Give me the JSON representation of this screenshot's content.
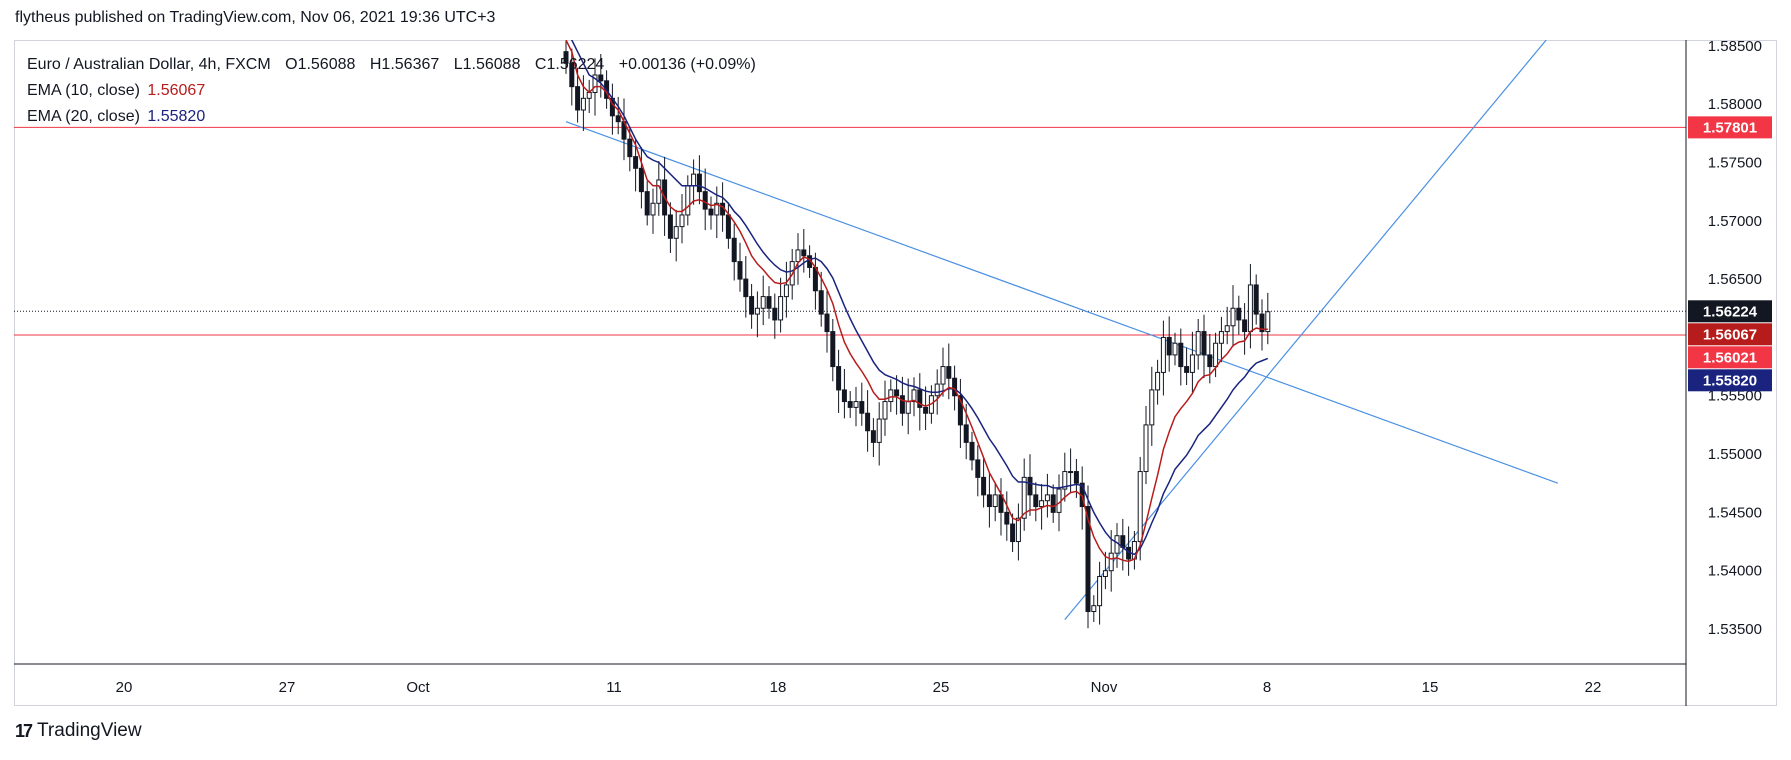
{
  "header": {
    "published_line": "flytheus published on TradingView.com, Nov 06, 2021 19:36 UTC+3"
  },
  "legend": {
    "symbol": "Euro / Australian Dollar, 4h, FXCM",
    "ohlc": {
      "o_label": "O",
      "o": "1.56088",
      "h_label": "H",
      "h": "1.56367",
      "l_label": "L",
      "l": "1.56088",
      "c_label": "C",
      "c": "1.56224",
      "change": "+0.00136 (+0.09%)"
    },
    "ema10": {
      "label": "EMA (10, close)",
      "value": "1.56067",
      "color": "#b71c1c"
    },
    "ema20": {
      "label": "EMA (20, close)",
      "value": "1.55820",
      "color": "#1a237e"
    }
  },
  "footer": {
    "logo_text": "TradingView",
    "logo_mark": "17"
  },
  "colors": {
    "candle": "#131722",
    "ema10": "#b71c1c",
    "ema20": "#1a237e",
    "trendline": "#4a90e2",
    "hline": "#f23645",
    "current_price_bg": "#131722",
    "ema10_label_bg": "#b71c1c",
    "ema20_label_bg": "#1a237e",
    "hline_label_bg": "#f23645"
  },
  "chart_data": {
    "type": "candlestick",
    "symbol": "Euro / Australian Dollar",
    "timeframe": "4h",
    "x_axis": {
      "ticks": [
        "20",
        "27",
        "Oct",
        "11",
        "18",
        "25",
        "Nov",
        "8",
        "15",
        "22"
      ]
    },
    "y_axis": {
      "range": [
        1.532,
        1.5855
      ],
      "ticks": [
        "1.53500",
        "1.54000",
        "1.54500",
        "1.55000",
        "1.55500",
        "1.56000",
        "1.56500",
        "1.57000",
        "1.57500",
        "1.58000",
        "1.58500"
      ]
    },
    "price_labels": [
      {
        "value": 1.57801,
        "text": "1.57801",
        "kind": "hline"
      },
      {
        "value": 1.56224,
        "text": "1.56224",
        "kind": "current"
      },
      {
        "value": 1.56067,
        "text": "1.56067",
        "kind": "ema10"
      },
      {
        "value": 1.56021,
        "text": "1.56021",
        "kind": "hline"
      },
      {
        "value": 1.5582,
        "text": "1.55820",
        "kind": "ema20"
      }
    ],
    "horizontal_lines": [
      1.57801,
      1.56021
    ],
    "current_price": 1.56224,
    "closes": [
      1.5835,
      1.5815,
      1.5795,
      1.5805,
      1.581,
      1.5825,
      1.582,
      1.5805,
      1.579,
      1.5785,
      1.577,
      1.5755,
      1.5745,
      1.5725,
      1.5705,
      1.5715,
      1.5735,
      1.5705,
      1.5685,
      1.5695,
      1.5705,
      1.573,
      1.574,
      1.5725,
      1.571,
      1.5705,
      1.5715,
      1.5705,
      1.5685,
      1.5665,
      1.565,
      1.5635,
      1.562,
      1.5625,
      1.5635,
      1.5625,
      1.5615,
      1.5635,
      1.5645,
      1.5665,
      1.5675,
      1.567,
      1.566,
      1.564,
      1.562,
      1.5605,
      1.5575,
      1.5555,
      1.5545,
      1.554,
      1.5545,
      1.5535,
      1.552,
      1.551,
      1.553,
      1.5545,
      1.5555,
      1.555,
      1.5535,
      1.5545,
      1.5555,
      1.554,
      1.5535,
      1.555,
      1.556,
      1.5575,
      1.5565,
      1.555,
      1.5525,
      1.551,
      1.5495,
      1.548,
      1.5465,
      1.5455,
      1.5465,
      1.545,
      1.544,
      1.5425,
      1.5445,
      1.548,
      1.5465,
      1.5455,
      1.546,
      1.5465,
      1.545,
      1.547,
      1.5485,
      1.5485,
      1.5475,
      1.5455,
      1.5365,
      1.537,
      1.5395,
      1.54,
      1.5415,
      1.543,
      1.542,
      1.541,
      1.5425,
      1.5485,
      1.5525,
      1.5555,
      1.557,
      1.56,
      1.5585,
      1.5595,
      1.5575,
      1.557,
      1.5585,
      1.5605,
      1.5585,
      1.5575,
      1.5595,
      1.5605,
      1.561,
      1.5625,
      1.5615,
      1.5605,
      1.5645,
      1.562,
      1.5605,
      1.5622
    ],
    "ema10": [
      1.5855,
      1.5845,
      1.5825,
      1.5815,
      1.581,
      1.5815,
      1.5815,
      1.581,
      1.58,
      1.5795,
      1.5785,
      1.5775,
      1.5765,
      1.575,
      1.5735,
      1.573,
      1.573,
      1.572,
      1.5712,
      1.5708,
      1.5708,
      1.5712,
      1.5717,
      1.5718,
      1.5716,
      1.5713,
      1.5714,
      1.5712,
      1.5706,
      1.5699,
      1.5691,
      1.5681,
      1.567,
      1.5663,
      1.5658,
      1.5652,
      1.5647,
      1.5646,
      1.5647,
      1.5654,
      1.5664,
      1.5669,
      1.5667,
      1.566,
      1.5651,
      1.5641,
      1.5629,
      1.5611,
      1.5596,
      1.5586,
      1.5578,
      1.5571,
      1.5563,
      1.5553,
      1.5547,
      1.5547,
      1.5549,
      1.5549,
      1.5546,
      1.5545,
      1.5546,
      1.5543,
      1.5541,
      1.5543,
      1.5547,
      1.5553,
      1.5557,
      1.5556,
      1.5546,
      1.5535,
      1.5523,
      1.551,
      1.5497,
      1.5484,
      1.5475,
      1.5466,
      1.5456,
      1.5445,
      1.5443,
      1.5449,
      1.5452,
      1.5452,
      1.5454,
      1.5456,
      1.5455,
      1.5458,
      1.5463,
      1.5467,
      1.5468,
      1.5464,
      1.5444,
      1.5429,
      1.5419,
      1.5412,
      1.541,
      1.5411,
      1.5409,
      1.5408,
      1.541,
      1.5422,
      1.5441,
      1.5462,
      1.5482,
      1.5504,
      1.5519,
      1.5532,
      1.5539,
      1.5545,
      1.5552,
      1.5562,
      1.5567,
      1.5568,
      1.5574,
      1.5581,
      1.5586,
      1.5593,
      1.5596,
      1.5597,
      1.5605,
      1.5608,
      1.5607,
      1.5607
    ],
    "ema20": [
      1.5865,
      1.5855,
      1.5845,
      1.5835,
      1.5825,
      1.5822,
      1.5818,
      1.5812,
      1.5805,
      1.5798,
      1.579,
      1.578,
      1.577,
      1.5762,
      1.5755,
      1.5752,
      1.575,
      1.5745,
      1.574,
      1.5735,
      1.573,
      1.573,
      1.573,
      1.573,
      1.5728,
      1.5725,
      1.5722,
      1.572,
      1.5715,
      1.5708,
      1.5703,
      1.5696,
      1.5688,
      1.568,
      1.5673,
      1.5667,
      1.5662,
      1.5658,
      1.5656,
      1.5657,
      1.566,
      1.5664,
      1.5667,
      1.5668,
      1.5665,
      1.5659,
      1.5651,
      1.5639,
      1.5627,
      1.5616,
      1.5606,
      1.5597,
      1.5588,
      1.5579,
      1.5572,
      1.5568,
      1.5566,
      1.5564,
      1.5561,
      1.5559,
      1.5558,
      1.5556,
      1.5554,
      1.5553,
      1.5553,
      1.5554,
      1.5556,
      1.5556,
      1.5552,
      1.5546,
      1.5539,
      1.5531,
      1.5522,
      1.5513,
      1.5506,
      1.5498,
      1.549,
      1.5481,
      1.5476,
      1.5476,
      1.5475,
      1.5474,
      1.5473,
      1.5473,
      1.5471,
      1.5471,
      1.5472,
      1.5473,
      1.5474,
      1.5473,
      1.5461,
      1.545,
      1.5441,
      1.5433,
      1.5427,
      1.5424,
      1.542,
      1.5416,
      1.5414,
      1.5419,
      1.5429,
      1.5441,
      1.5452,
      1.5466,
      1.5476,
      1.5487,
      1.5493,
      1.5499,
      1.5507,
      1.5516,
      1.5521,
      1.5526,
      1.5533,
      1.554,
      1.5547,
      1.5555,
      1.5561,
      1.5566,
      1.5573,
      1.5578,
      1.558,
      1.5582
    ],
    "trendlines": [
      {
        "from": {
          "bar": 0,
          "price": 1.5785
        },
        "to": {
          "bar": 171,
          "price": 1.5475
        }
      },
      {
        "from": {
          "bar": 86,
          "price": 1.5358
        },
        "to": {
          "bar": 169,
          "price": 1.5855
        }
      }
    ]
  }
}
